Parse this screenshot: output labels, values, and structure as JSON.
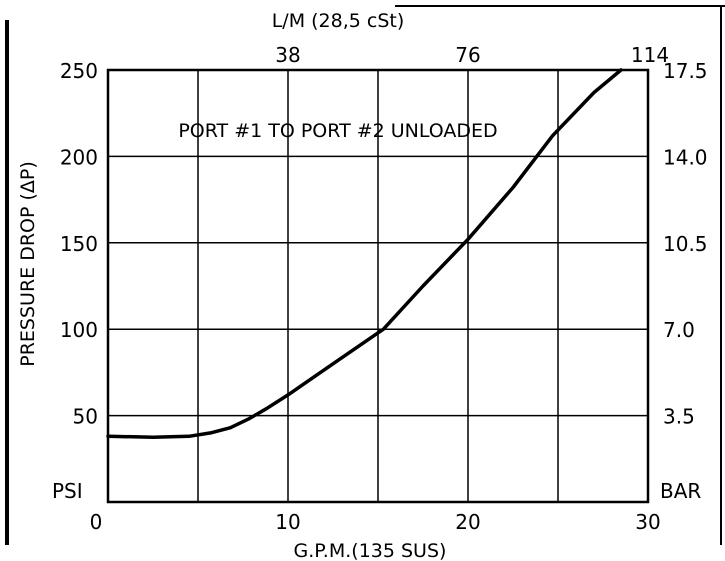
{
  "chart_data": {
    "type": "line",
    "annotation": "PORT #1 TO PORT #2 UNLOADED",
    "xlabel": "G.P.M.(135 SUS)",
    "ylabel": "PRESSURE DROP (ΔP)",
    "x2label": "L/M (28,5 cSt)",
    "left_unit": "PSI",
    "right_unit": "BAR",
    "xlim": [
      0,
      30
    ],
    "ylim": [
      0,
      250
    ],
    "x_ticks": [
      0,
      10,
      20,
      30
    ],
    "y_ticks": [
      50,
      100,
      150,
      200,
      250
    ],
    "x2_ticks": [
      {
        "label": "38",
        "gpm": 10
      },
      {
        "label": "76",
        "gpm": 20
      },
      {
        "label": "114",
        "gpm": 30
      }
    ],
    "y2_ticks": [
      {
        "label": "3.5",
        "psi": 50
      },
      {
        "label": "7.0",
        "psi": 100
      },
      {
        "label": "10.5",
        "psi": 150
      },
      {
        "label": "14.0",
        "psi": 200
      },
      {
        "label": "17.5",
        "psi": 250
      }
    ],
    "grid": true,
    "series": [
      {
        "x": [
          0,
          2.5,
          4.5,
          5.7,
          6.8,
          7.8,
          8.8,
          10,
          12.5,
          15.3,
          17.5,
          20,
          22.5,
          24.7,
          27,
          28.5
        ],
        "y": [
          38,
          37.5,
          38,
          40,
          43,
          48,
          54,
          62,
          80,
          100,
          125,
          152,
          182,
          212,
          237,
          250
        ]
      }
    ]
  }
}
